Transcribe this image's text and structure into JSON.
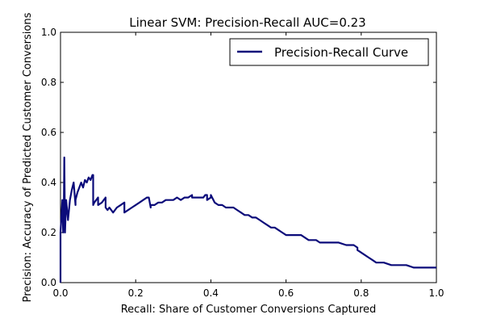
{
  "chart_data": {
    "type": "line",
    "title": "Linear SVM: Precision-Recall AUC=0.23",
    "xlabel": "Recall: Share of Customer Conversions Captured",
    "ylabel": "Precision: Accuracy of Predicted Customer Conversions",
    "xlim": [
      0,
      1
    ],
    "ylim": [
      0,
      1
    ],
    "x_ticks": [
      "0.0",
      "0.2",
      "0.4",
      "0.6",
      "0.8",
      "1.0"
    ],
    "y_ticks": [
      "0.0",
      "0.2",
      "0.4",
      "0.6",
      "0.8",
      "1.0"
    ],
    "grid": false,
    "legend_position": "top-right",
    "series": [
      {
        "name": "Precision-Recall Curve",
        "color": "#0b0b7a",
        "x": [
          0.0,
          0.0,
          0.005,
          0.007,
          0.009,
          0.01,
          0.012,
          0.015,
          0.02,
          0.025,
          0.03,
          0.035,
          0.04,
          0.04,
          0.045,
          0.05,
          0.055,
          0.06,
          0.065,
          0.07,
          0.075,
          0.08,
          0.085,
          0.087,
          0.087,
          0.09,
          0.1,
          0.1,
          0.11,
          0.12,
          0.12,
          0.125,
          0.13,
          0.14,
          0.15,
          0.16,
          0.17,
          0.17,
          0.18,
          0.19,
          0.2,
          0.21,
          0.22,
          0.23,
          0.235,
          0.24,
          0.24,
          0.25,
          0.26,
          0.27,
          0.28,
          0.29,
          0.3,
          0.31,
          0.32,
          0.33,
          0.34,
          0.35,
          0.35,
          0.36,
          0.37,
          0.38,
          0.385,
          0.39,
          0.39,
          0.4,
          0.4,
          0.41,
          0.42,
          0.43,
          0.44,
          0.45,
          0.46,
          0.47,
          0.48,
          0.49,
          0.5,
          0.51,
          0.52,
          0.53,
          0.54,
          0.55,
          0.56,
          0.57,
          0.58,
          0.59,
          0.6,
          0.61,
          0.62,
          0.63,
          0.64,
          0.65,
          0.66,
          0.67,
          0.68,
          0.69,
          0.7,
          0.72,
          0.74,
          0.76,
          0.78,
          0.79,
          0.79,
          0.8,
          0.81,
          0.82,
          0.83,
          0.84,
          0.86,
          0.88,
          0.9,
          0.92,
          0.94,
          0.96,
          0.98,
          1.0
        ],
        "y": [
          0.0,
          0.2,
          0.33,
          0.2,
          0.33,
          0.5,
          0.2,
          0.33,
          0.25,
          0.33,
          0.37,
          0.4,
          0.31,
          0.33,
          0.36,
          0.38,
          0.4,
          0.38,
          0.41,
          0.4,
          0.42,
          0.41,
          0.43,
          0.43,
          0.31,
          0.32,
          0.34,
          0.31,
          0.32,
          0.34,
          0.3,
          0.29,
          0.3,
          0.28,
          0.3,
          0.31,
          0.32,
          0.28,
          0.29,
          0.3,
          0.31,
          0.32,
          0.33,
          0.34,
          0.34,
          0.3,
          0.31,
          0.31,
          0.32,
          0.32,
          0.33,
          0.33,
          0.33,
          0.34,
          0.33,
          0.34,
          0.34,
          0.35,
          0.34,
          0.34,
          0.34,
          0.34,
          0.35,
          0.35,
          0.33,
          0.34,
          0.35,
          0.32,
          0.31,
          0.31,
          0.3,
          0.3,
          0.3,
          0.29,
          0.28,
          0.27,
          0.27,
          0.26,
          0.26,
          0.25,
          0.24,
          0.23,
          0.22,
          0.22,
          0.21,
          0.2,
          0.19,
          0.19,
          0.19,
          0.19,
          0.19,
          0.18,
          0.17,
          0.17,
          0.17,
          0.16,
          0.16,
          0.16,
          0.16,
          0.15,
          0.15,
          0.14,
          0.13,
          0.12,
          0.11,
          0.1,
          0.09,
          0.08,
          0.08,
          0.07,
          0.07,
          0.07,
          0.06,
          0.06,
          0.06,
          0.06
        ]
      }
    ]
  }
}
